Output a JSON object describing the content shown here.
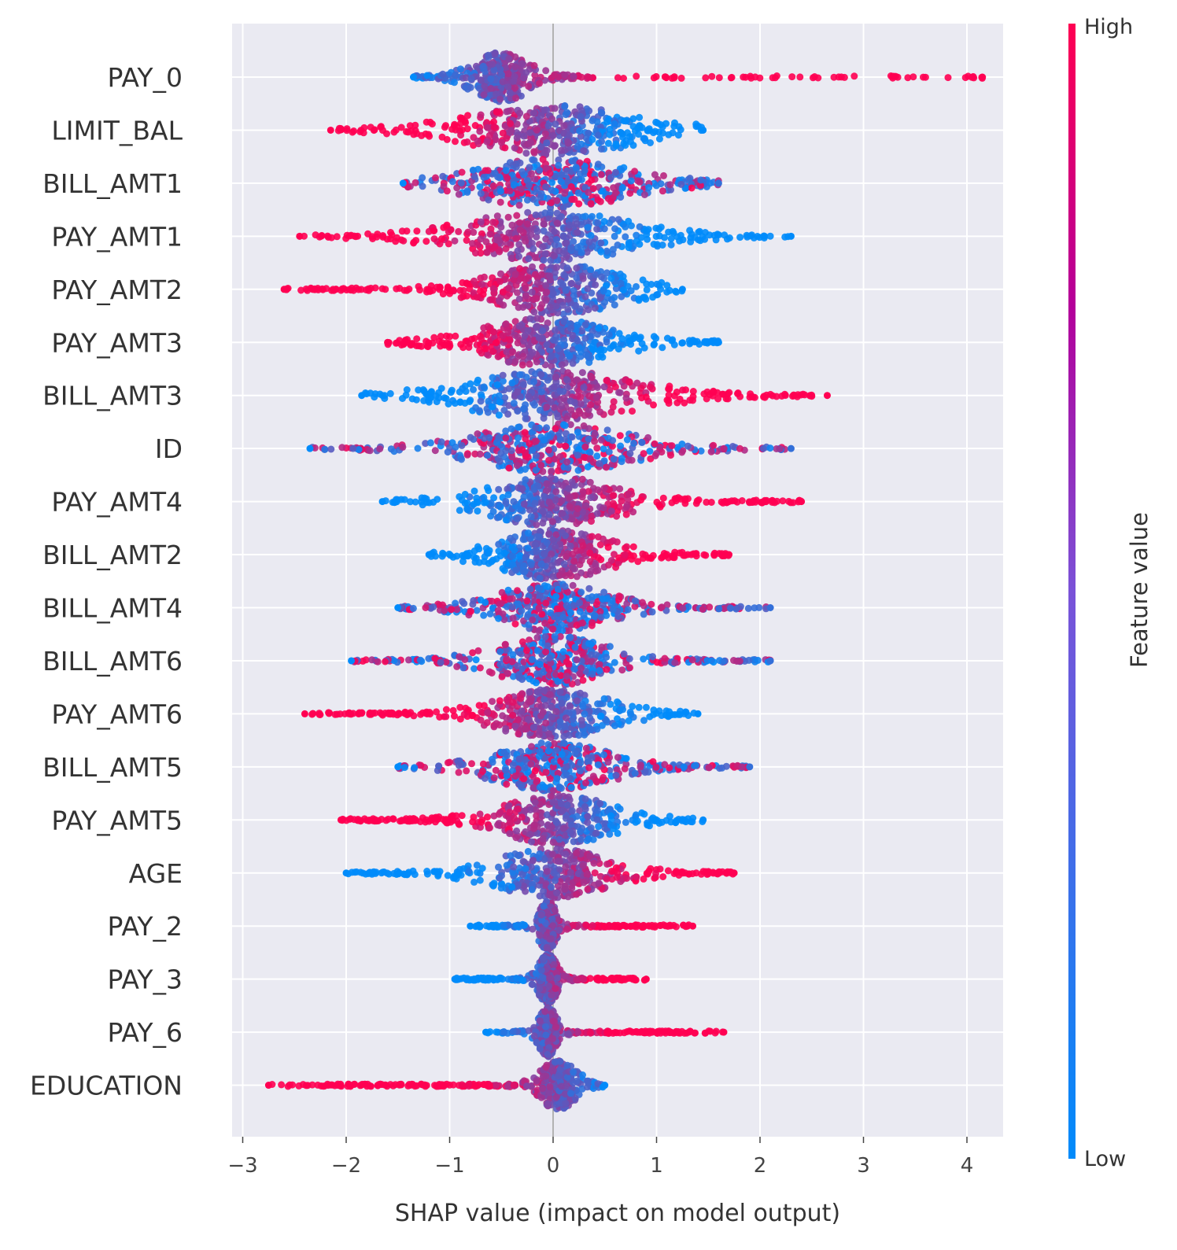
{
  "chart_data": {
    "type": "scatter",
    "subtype": "shap-beeswarm-summary",
    "xlabel": "SHAP value (impact on model output)",
    "xlim": [
      -3.1,
      4.5
    ],
    "xticks": [
      -3,
      -2,
      -1,
      0,
      1,
      2,
      3,
      4
    ],
    "xtick_labels": [
      "−3",
      "−2",
      "−1",
      "0",
      "1",
      "2",
      "3",
      "4"
    ],
    "grid": true,
    "colorbar": {
      "title": "Feature value",
      "high_label": "High",
      "low_label": "Low",
      "high_color": "#ff0052",
      "low_color": "#008bfb"
    },
    "features": [
      {
        "name": "PAY_0",
        "min": -1.35,
        "max": 4.15,
        "center": -0.5,
        "spread": 0.15,
        "high_side": "right",
        "bulk_hi": 0.4
      },
      {
        "name": "LIMIT_BAL",
        "min": -2.15,
        "max": 1.45,
        "center": 0.0,
        "spread": 0.45,
        "high_side": "left"
      },
      {
        "name": "BILL_AMT1",
        "min": -1.45,
        "max": 1.6,
        "center": 0.0,
        "spread": 0.4,
        "high_side": "mixed"
      },
      {
        "name": "PAY_AMT1",
        "min": -2.45,
        "max": 2.3,
        "center": -0.05,
        "spread": 0.45,
        "high_side": "left"
      },
      {
        "name": "PAY_AMT2",
        "min": -2.6,
        "max": 1.25,
        "center": 0.05,
        "spread": 0.35,
        "high_side": "left"
      },
      {
        "name": "PAY_AMT3",
        "min": -1.6,
        "max": 1.6,
        "center": -0.05,
        "spread": 0.35,
        "high_side": "left"
      },
      {
        "name": "BILL_AMT3",
        "min": -1.85,
        "max": 2.65,
        "center": 0.0,
        "spread": 0.45,
        "high_side": "right"
      },
      {
        "name": "ID",
        "min": -2.35,
        "max": 2.3,
        "center": 0.0,
        "spread": 0.4,
        "high_side": "mixed"
      },
      {
        "name": "PAY_AMT4",
        "min": -1.65,
        "max": 2.4,
        "center": 0.0,
        "spread": 0.35,
        "high_side": "right"
      },
      {
        "name": "BILL_AMT2",
        "min": -1.2,
        "max": 1.7,
        "center": 0.0,
        "spread": 0.3,
        "high_side": "right"
      },
      {
        "name": "BILL_AMT4",
        "min": -1.5,
        "max": 2.1,
        "center": 0.0,
        "spread": 0.3,
        "high_side": "mixed"
      },
      {
        "name": "BILL_AMT6",
        "min": -1.95,
        "max": 2.1,
        "center": 0.0,
        "spread": 0.3,
        "high_side": "mixed"
      },
      {
        "name": "PAY_AMT6",
        "min": -2.4,
        "max": 1.4,
        "center": 0.0,
        "spread": 0.3,
        "high_side": "left"
      },
      {
        "name": "BILL_AMT5",
        "min": -1.5,
        "max": 1.9,
        "center": 0.0,
        "spread": 0.3,
        "high_side": "mixed"
      },
      {
        "name": "PAY_AMT5",
        "min": -2.05,
        "max": 1.45,
        "center": 0.05,
        "spread": 0.3,
        "high_side": "left"
      },
      {
        "name": "AGE",
        "min": -2.0,
        "max": 1.75,
        "center": 0.0,
        "spread": 0.3,
        "high_side": "right"
      },
      {
        "name": "PAY_2",
        "min": -0.8,
        "max": 1.35,
        "center": -0.05,
        "spread": 0.05,
        "high_side": "right",
        "bulk_hi": 1.05
      },
      {
        "name": "PAY_3",
        "min": -0.95,
        "max": 0.9,
        "center": -0.05,
        "spread": 0.05,
        "high_side": "right",
        "bulk_hi": 0.8
      },
      {
        "name": "PAY_6",
        "min": -0.65,
        "max": 1.65,
        "center": -0.05,
        "spread": 0.05,
        "high_side": "right",
        "bulk_hi": 1.4
      },
      {
        "name": "EDUCATION",
        "min": -2.75,
        "max": 0.5,
        "center": 0.05,
        "spread": 0.1,
        "high_side": "left",
        "bulk_lo": -2.5
      }
    ]
  }
}
